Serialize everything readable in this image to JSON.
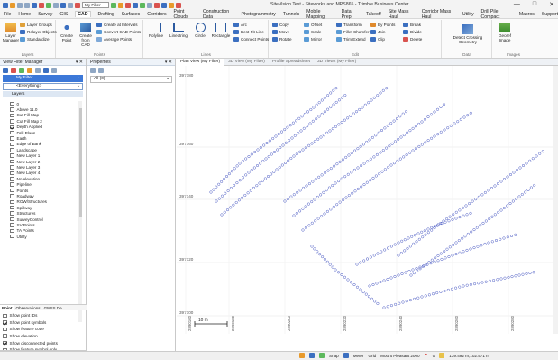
{
  "window": {
    "title": "SiteVision Test - Siteworks and MPS865 - Trimble Business Center",
    "controls": [
      "—",
      "□",
      "✕"
    ]
  },
  "quick_access": {
    "filter_value": "My Filter"
  },
  "menu": [
    "File",
    "Home",
    "Survey",
    "GIS",
    "CAD",
    "Drafting",
    "Surfaces",
    "Corridors",
    "Point Clouds",
    "Construction Data",
    "Photogrammetry",
    "Tunnels",
    "Mobile Mapping",
    "Data Prep",
    "Takeoff",
    "Site Mass Haul",
    "Corridor Mass Haul",
    "Utility",
    "Drill Pile Compact",
    "Macros",
    "Support"
  ],
  "active_menu": "CAD",
  "ribbon": {
    "layers": {
      "label": "Layers",
      "big": "Layer Manager",
      "items": [
        "Layer Groups",
        "Relayer Objects",
        "Standardize"
      ]
    },
    "points": {
      "label": "Points",
      "create_point": "Create Point",
      "create_cad": "Create from CAD",
      "items": [
        "Create at Intervals",
        "Convert CAD Points",
        "Average Points"
      ]
    },
    "lines": {
      "label": "Lines",
      "polyline": "Polyline",
      "linestring": "Linestring",
      "circle": "Circle",
      "rectangle": "Rectangle",
      "items": [
        "Arc",
        "Best-Fit Line",
        "Connect Points"
      ]
    },
    "edit": {
      "label": "Edit",
      "items": [
        "Copy",
        "Offset",
        "Transform",
        "By Points",
        "Break",
        "Move",
        "Scale",
        "Fillet Chamfer",
        "Join",
        "Divide",
        "Rotate",
        "Mirror",
        "Trim Extend",
        "Clip",
        "Delete"
      ]
    },
    "data": {
      "label": "Data",
      "detect": "Detect Crossing Geometry"
    },
    "images": {
      "label": "Images",
      "georef": "Georef Image"
    }
  },
  "layer_panel": {
    "title": "View Filter Manager",
    "filter": "My Filter",
    "scope": "<Everything>",
    "layers_header": "Layers",
    "layers": [
      {
        "name": "0",
        "on": false
      },
      {
        "name": "Above 11.0",
        "on": false
      },
      {
        "name": "Cut Fill Map",
        "on": false
      },
      {
        "name": "Cut Fill Map 2",
        "on": false
      },
      {
        "name": "Depth Applied",
        "on": true
      },
      {
        "name": "Drill Plans",
        "on": false
      },
      {
        "name": "Earth",
        "on": false
      },
      {
        "name": "Edge of Bank",
        "on": false
      },
      {
        "name": "Landscape",
        "on": false
      },
      {
        "name": "New Layer 1",
        "on": false
      },
      {
        "name": "New Layer 2",
        "on": false
      },
      {
        "name": "New Layer 3",
        "on": false
      },
      {
        "name": "New Layer 4",
        "on": false
      },
      {
        "name": "No elevation",
        "on": false
      },
      {
        "name": "Pipeline",
        "on": false
      },
      {
        "name": "Points",
        "on": false
      },
      {
        "name": "Roadway",
        "on": false
      },
      {
        "name": "ROW/Structures",
        "on": false
      },
      {
        "name": "Spillway",
        "on": false
      },
      {
        "name": "Structures",
        "on": false
      },
      {
        "name": "SurveyControl",
        "on": false
      },
      {
        "name": "SV Points",
        "on": false
      },
      {
        "name": "TA Points",
        "on": false
      },
      {
        "name": "Utility",
        "on": false
      }
    ],
    "tabs": [
      "Point",
      "Observations",
      "GNSS De"
    ],
    "options": [
      {
        "label": "Show point IDs",
        "on": false
      },
      {
        "label": "Show point symbols",
        "on": true
      },
      {
        "label": "Show feature code",
        "on": false
      },
      {
        "label": "Show elevation",
        "on": false
      },
      {
        "label": "Show disconnected points",
        "on": true
      },
      {
        "label": "Show feature symbol only",
        "on": false
      }
    ],
    "footer": [
      "Project Explorer",
      "View Filter Man..."
    ]
  },
  "props_panel": {
    "title": "Properties",
    "selection": "All (0)"
  },
  "view_tabs": [
    "Plan View (My Filter)",
    "3D View (My Filter)",
    "Profile Spreadsheet",
    "3D View2 (My Filter)"
  ],
  "plan": {
    "y_labels": [
      "397760",
      "397740",
      "397720",
      "397700",
      "397780"
    ],
    "x_labels": [
      "2890160",
      "2890180",
      "2890200",
      "2890220",
      "2890240",
      "2890260",
      "2890280"
    ],
    "scale": "10 m"
  },
  "status": {
    "snap": "Snap",
    "unit": "Meter",
    "grid": "Grid",
    "site": "Mount Pleasant 2000",
    "count": "0",
    "coords": "139.492 m,102.571 m"
  }
}
